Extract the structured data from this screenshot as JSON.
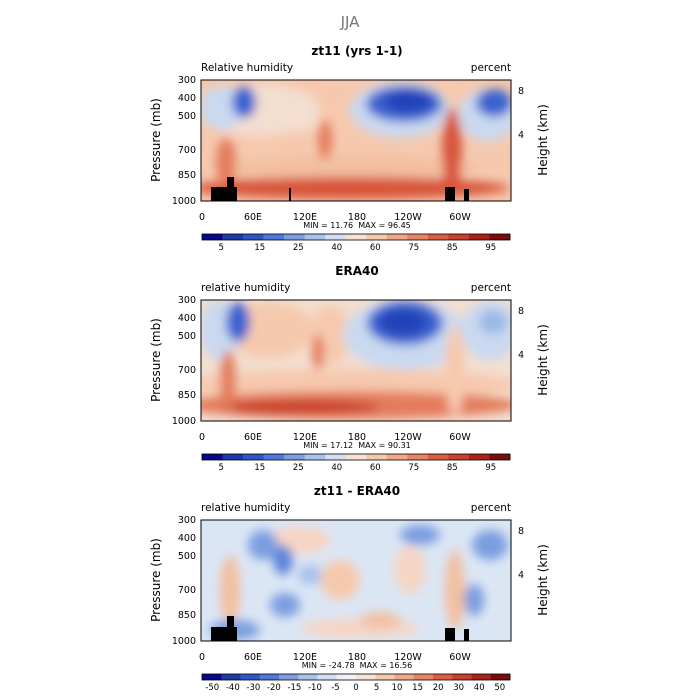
{
  "figure": {
    "title": "JJA"
  },
  "chart_data": [
    {
      "type": "heatmap",
      "title": "zt11 (yrs 1-1)",
      "left_label": "Relative humidity",
      "right_label": "percent",
      "ylabel": "Pressure (mb)",
      "y2label": "Height (km)",
      "x_ticks": [
        "0",
        "60E",
        "120E",
        "180",
        "120W",
        "60W"
      ],
      "y_ticks": [
        "300",
        "400",
        "500",
        "700",
        "850",
        "1000"
      ],
      "y2_ticks": [
        "8",
        "4"
      ],
      "stats": "MIN = 11.76  MAX = 96.45",
      "min": 11.76,
      "max": 96.45,
      "colorbar": {
        "labels": [
          "5",
          "15",
          "25",
          "40",
          "60",
          "75",
          "85",
          "95"
        ],
        "palette": "blue-red"
      }
    },
    {
      "type": "heatmap",
      "title": "ERA40",
      "left_label": "relative humidity",
      "right_label": "percent",
      "ylabel": "Pressure (mb)",
      "y2label": "Height (km)",
      "x_ticks": [
        "0",
        "60E",
        "120E",
        "180",
        "120W",
        "60W"
      ],
      "y_ticks": [
        "300",
        "400",
        "500",
        "700",
        "850",
        "1000"
      ],
      "y2_ticks": [
        "8",
        "4"
      ],
      "stats": "MIN = 17.12  MAX = 90.31",
      "min": 17.12,
      "max": 90.31,
      "colorbar": {
        "labels": [
          "5",
          "15",
          "25",
          "40",
          "60",
          "75",
          "85",
          "95"
        ],
        "palette": "blue-red"
      }
    },
    {
      "type": "heatmap",
      "title": "zt11 - ERA40",
      "left_label": "relative humidity",
      "right_label": "percent",
      "ylabel": "Pressure (mb)",
      "y2label": "Height (km)",
      "x_ticks": [
        "0",
        "60E",
        "120E",
        "180",
        "120W",
        "60W"
      ],
      "y_ticks": [
        "300",
        "400",
        "500",
        "700",
        "850",
        "1000"
      ],
      "y2_ticks": [
        "8",
        "4"
      ],
      "stats": "MIN = -24.78  MAX = 16.56",
      "min": -24.78,
      "max": 16.56,
      "colorbar": {
        "labels": [
          "-50",
          "-40",
          "-30",
          "-20",
          "-15",
          "-10",
          "-5",
          "0",
          "5",
          "10",
          "15",
          "20",
          "30",
          "40",
          "50"
        ],
        "palette": "diverging"
      }
    }
  ]
}
